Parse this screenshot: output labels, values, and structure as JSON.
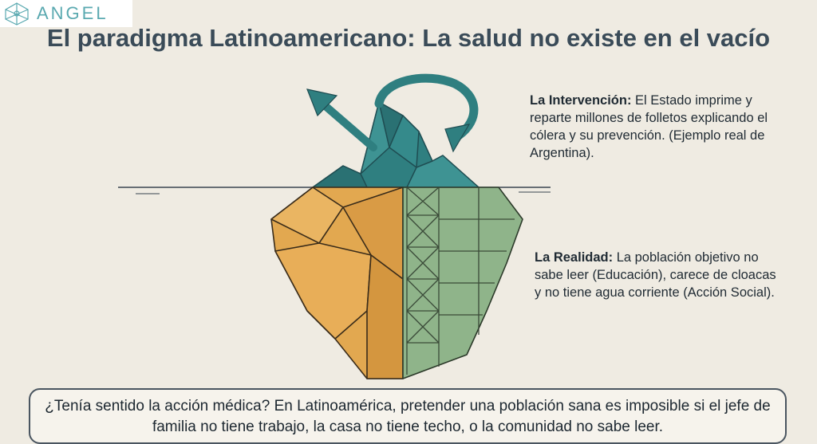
{
  "logo": {
    "text": "ANGEL",
    "icon": "network-node-icon"
  },
  "title": "El paradigma Latinoamericano: La salud no existe en el vacío",
  "intervention": {
    "label": "La Intervención:",
    "text": " El Estado imprime y reparte millones de folletos explicando el cólera y su prevención. (Ejemplo real de Argentina)."
  },
  "reality": {
    "label": "La Realidad:",
    "text": " La población objetivo no sabe leer (Educación), carece de cloacas y no tiene agua corriente (Acción Social)."
  },
  "bottom": {
    "text": "¿Tenía sentido la acción médica? En Latinoamérica, pretender una población sana es imposible si el jefe de familia no tiene trabajo, la casa no tiene techo, o la comunidad no sabe leer."
  },
  "colors": {
    "tip": "#2f7f80",
    "underwater_left": "#e2a850",
    "underwater_right": "#8fb48a",
    "background": "#efebe2",
    "title": "#3a4b58"
  }
}
